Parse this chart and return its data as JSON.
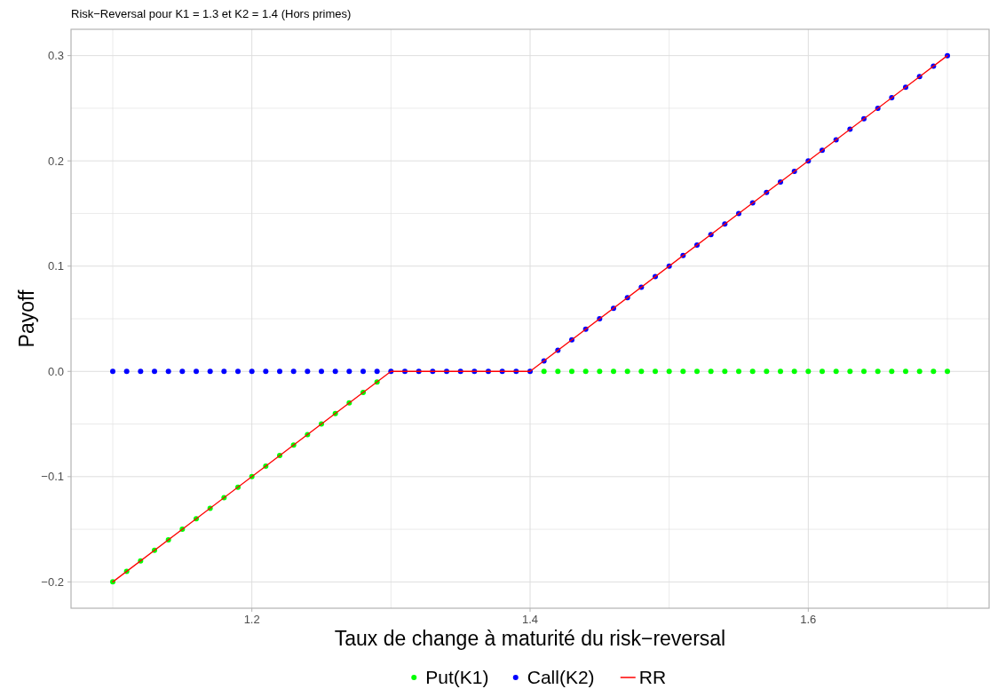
{
  "chart_data": {
    "type": "scatter",
    "title": "Risk−Reversal pour K1 = 1.3 et K2 = 1.4 (Hors primes)",
    "xlabel": "Taux de change à maturité du risk−reversal",
    "ylabel": "Payoff",
    "x": [
      1.1,
      1.11,
      1.12,
      1.13,
      1.14,
      1.15,
      1.16,
      1.17,
      1.18,
      1.19,
      1.2,
      1.21,
      1.22,
      1.23,
      1.24,
      1.25,
      1.26,
      1.27,
      1.28,
      1.29,
      1.3,
      1.31,
      1.32,
      1.33,
      1.34,
      1.35,
      1.36,
      1.37,
      1.38,
      1.39,
      1.4,
      1.41,
      1.42,
      1.43,
      1.44,
      1.45,
      1.46,
      1.47,
      1.48,
      1.49,
      1.5,
      1.51,
      1.52,
      1.53,
      1.54,
      1.55,
      1.56,
      1.57,
      1.58,
      1.59,
      1.6,
      1.61,
      1.62,
      1.63,
      1.64,
      1.65,
      1.66,
      1.67,
      1.68,
      1.69,
      1.7
    ],
    "series": [
      {
        "name": "Put(K1)",
        "color": "#00ff00",
        "values": [
          -0.2,
          -0.19,
          -0.18,
          -0.17,
          -0.16,
          -0.15,
          -0.14,
          -0.13,
          -0.12,
          -0.11,
          -0.1,
          -0.09,
          -0.08,
          -0.07,
          -0.06,
          -0.05,
          -0.04,
          -0.03,
          -0.02,
          -0.01,
          null,
          null,
          null,
          null,
          null,
          null,
          null,
          null,
          null,
          null,
          null,
          0,
          0,
          0,
          0,
          0,
          0,
          0,
          0,
          0,
          0,
          0,
          0,
          0,
          0,
          0,
          0,
          0,
          0,
          0,
          0,
          0,
          0,
          0,
          0,
          0,
          0,
          0,
          0,
          0,
          0
        ]
      },
      {
        "name": "Call(K2)",
        "color": "#0000ff",
        "values": [
          0,
          0,
          0,
          0,
          0,
          0,
          0,
          0,
          0,
          0,
          0,
          0,
          0,
          0,
          0,
          0,
          0,
          0,
          0,
          0,
          0,
          0,
          0,
          0,
          0,
          0,
          0,
          0,
          0,
          0,
          0,
          0.01,
          0.02,
          0.03,
          0.04,
          0.05,
          0.06,
          0.07,
          0.08,
          0.09,
          0.1,
          0.11,
          0.12,
          0.13,
          0.14,
          0.15,
          0.16,
          0.17,
          0.18,
          0.19,
          0.2,
          0.21,
          0.22,
          0.23,
          0.24,
          0.25,
          0.26,
          0.27,
          0.28,
          0.29,
          0.3
        ]
      },
      {
        "name": "RR",
        "color": "#ff0000",
        "type": "line",
        "marker": "none",
        "x": [
          1.1,
          1.3,
          1.4,
          1.7
        ],
        "values": [
          -0.2,
          0,
          0,
          0.3
        ]
      }
    ],
    "xlim": [
      1.07,
      1.73
    ],
    "xticks": [
      {
        "value": 1.1,
        "label": null
      },
      1.2,
      {
        "value": 1.3,
        "label": null
      },
      1.4,
      {
        "value": 1.5,
        "label": null
      },
      1.6,
      {
        "value": 1.7,
        "label": null
      }
    ],
    "ylim": [
      -0.225,
      0.325
    ],
    "yticks": [
      -0.2,
      {
        "value": -0.15,
        "label": null
      },
      -0.1,
      {
        "value": -0.05,
        "label": null
      },
      {
        "value": 0,
        "label": "0.0"
      },
      {
        "value": 0.05,
        "label": null
      },
      0.1,
      {
        "value": 0.15,
        "label": null
      },
      0.2,
      {
        "value": 0.25,
        "label": null
      },
      0.3
    ],
    "grid": true,
    "legend": "bottom",
    "marker": "circle",
    "line_style": "solid"
  }
}
